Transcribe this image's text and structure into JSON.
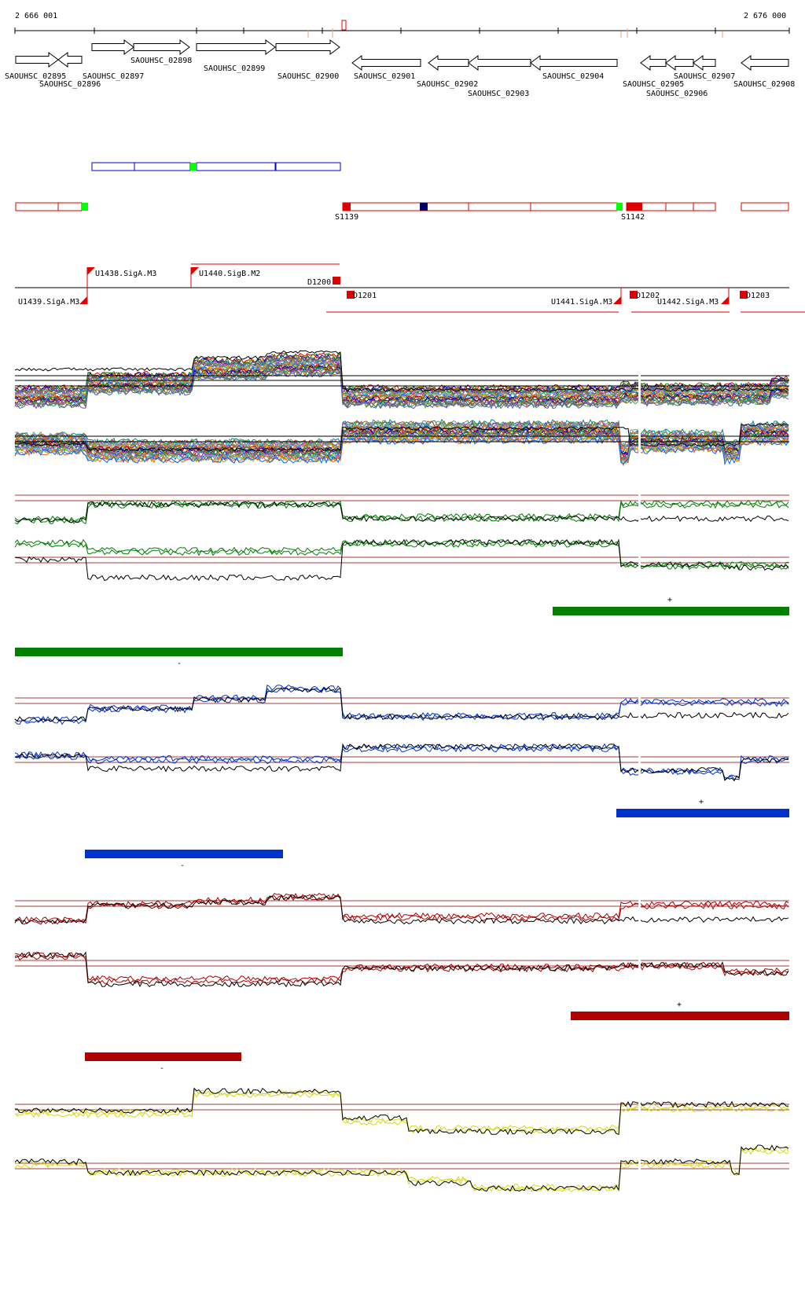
{
  "coords": {
    "start": "2 666 001",
    "end": "2 676 000"
  },
  "genes": [
    {
      "name": "SAOUHSC_02895",
      "dir": "r"
    },
    {
      "name": "SAOUHSC_02896",
      "dir": "l"
    },
    {
      "name": "SAOUHSC_02897",
      "dir": "r"
    },
    {
      "name": "SAOUHSC_02898",
      "dir": "r"
    },
    {
      "name": "SAOUHSC_02899",
      "dir": "r"
    },
    {
      "name": "SAOUHSC_02900",
      "dir": "r"
    },
    {
      "name": "SAOUHSC_02901",
      "dir": "l"
    },
    {
      "name": "SAOUHSC_02902",
      "dir": "l"
    },
    {
      "name": "SAOUHSC_02903",
      "dir": "l"
    },
    {
      "name": "SAOUHSC_02904",
      "dir": "l"
    },
    {
      "name": "SAOUHSC_02905",
      "dir": "l"
    },
    {
      "name": "SAOUHSC_02906",
      "dir": "l"
    },
    {
      "name": "SAOUHSC_02907",
      "dir": "l"
    },
    {
      "name": "SAOUHSC_02908",
      "dir": "l"
    }
  ],
  "segments": {
    "s1": "S1139",
    "s2": "S1142"
  },
  "promoters": {
    "plus": [
      "U1438.SigA.M3",
      "U1440.SigB.M2"
    ],
    "minus": [
      "U1439.SigA.M3",
      "U1441.SigA.M3",
      "U1442.SigA.M3"
    ],
    "terms": [
      "D1200",
      "D1201",
      "D1202",
      "D1203"
    ]
  },
  "strand_marks": {
    "plus": "+",
    "minus": "-"
  },
  "colors": {
    "green": "#007f00",
    "blue": "#0033cc",
    "red": "#b00000",
    "yellow": "#d8d820",
    "genebox_blue": "#0000cc",
    "segbox_red": "#dd0000",
    "marker_green": "#00ff00",
    "marker_navy": "#000066",
    "threshold": "#a04040"
  }
}
